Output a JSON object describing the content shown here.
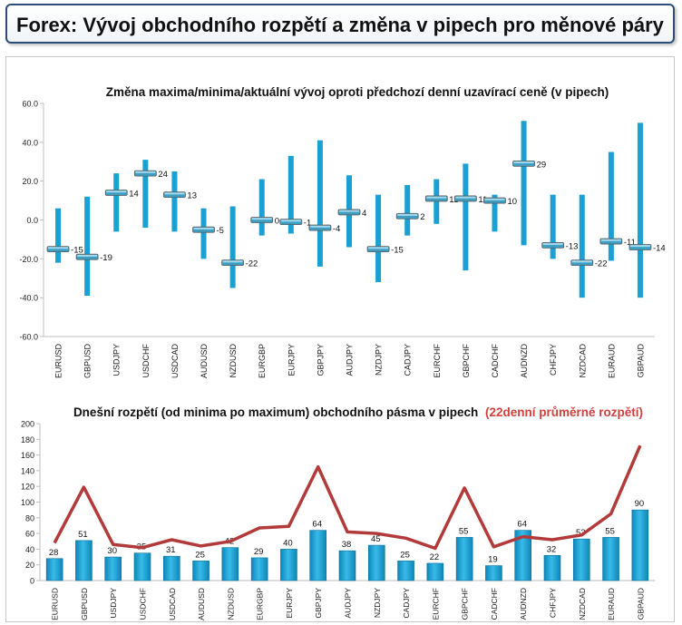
{
  "header": {
    "title": "Forex: Vývoj obchodního rozpětí a změna v pipech pro měnové páry"
  },
  "chart_data": [
    {
      "type": "range",
      "title": "Změna maxima/minima/aktuální vývoj oproti předchozí denní uzavírací ceně (v pipech)",
      "categories": [
        "EURUSD",
        "GBPUSD",
        "USDJPY",
        "USDCHF",
        "USDCAD",
        "AUDUSD",
        "NZDUSD",
        "EURGBP",
        "EURJPY",
        "GBPJPY",
        "AUDJPY",
        "NZDJPY",
        "CADJPY",
        "EURCHF",
        "GBPCHF",
        "CADCHF",
        "AUDNZD",
        "CHFJPY",
        "NZDCAD",
        "EURAUD",
        "GBPAUD"
      ],
      "high": [
        6,
        12,
        24,
        31,
        25,
        6,
        7,
        21,
        33,
        41,
        23,
        13,
        18,
        21,
        29,
        13,
        51,
        13,
        13,
        35,
        50
      ],
      "low": [
        -22,
        -39,
        -6,
        -4,
        -6,
        -20,
        -35,
        -8,
        -7,
        -24,
        -14,
        -32,
        -8,
        -2,
        -26,
        -6,
        -13,
        -20,
        -40,
        -21,
        -40
      ],
      "current": [
        -15,
        -19,
        14,
        24,
        13,
        -5,
        -22,
        0,
        -1,
        -4,
        4,
        -15,
        2,
        11,
        11,
        10,
        29,
        -13,
        -22,
        -11,
        -14
      ],
      "labels": [
        "-15",
        "-19",
        "14",
        "24",
        "13",
        "-5",
        "-22",
        "0",
        "-1",
        "-4",
        "4",
        "-15",
        "2",
        "11",
        "11",
        "10",
        "29",
        "-13",
        "-22",
        "-11",
        "-14"
      ],
      "ylim": [
        -60,
        60
      ],
      "yticks": [
        "60.0",
        "40.0",
        "20.0",
        "0.0",
        "-20.0",
        "-40.0",
        "-60.0"
      ],
      "bar_color": "#1aa0d2"
    },
    {
      "type": "bar",
      "title": "Dnešní rozpětí (od minima po maximum) obchodního pásma v pipech",
      "title_suffix": "(22denní průměrné rozpětí)",
      "categories": [
        "EURUSD",
        "GBPUSD",
        "USDJPY",
        "USDCHF",
        "USDCAD",
        "AUDUSD",
        "NZDUSD",
        "EURGBP",
        "EURJPY",
        "GBPJPY",
        "AUDJPY",
        "NZDJPY",
        "CADJPY",
        "EURCHF",
        "GBPCHF",
        "CADCHF",
        "AUDNZD",
        "CHFJPY",
        "NZDCAD",
        "EURAUD",
        "GBPAUD"
      ],
      "series": [
        {
          "values": [
            28,
            51,
            30,
            35,
            31,
            25,
            42,
            29,
            40,
            64,
            38,
            45,
            25,
            22,
            55,
            19,
            64,
            32,
            53,
            55,
            90
          ],
          "labels": [
            "28",
            "51",
            "30",
            "35",
            "31",
            "25",
            "42",
            "29",
            "40",
            "64",
            "38",
            "45",
            "25",
            "22",
            "55",
            "19",
            "64",
            "32",
            "53",
            "55",
            "90"
          ],
          "color": "#1aa0d2"
        },
        {
          "values": [
            48,
            119,
            46,
            42,
            52,
            44,
            50,
            67,
            69,
            145,
            62,
            60,
            54,
            41,
            118,
            43,
            56,
            52,
            58,
            85,
            172
          ],
          "color": "#b33a3a"
        }
      ],
      "ylim": [
        0,
        200
      ],
      "yticks": [
        "200",
        "180",
        "160",
        "140",
        "120",
        "100",
        "80",
        "60",
        "40",
        "20",
        "0"
      ],
      "title_suffix_color": "#d0403c"
    }
  ]
}
